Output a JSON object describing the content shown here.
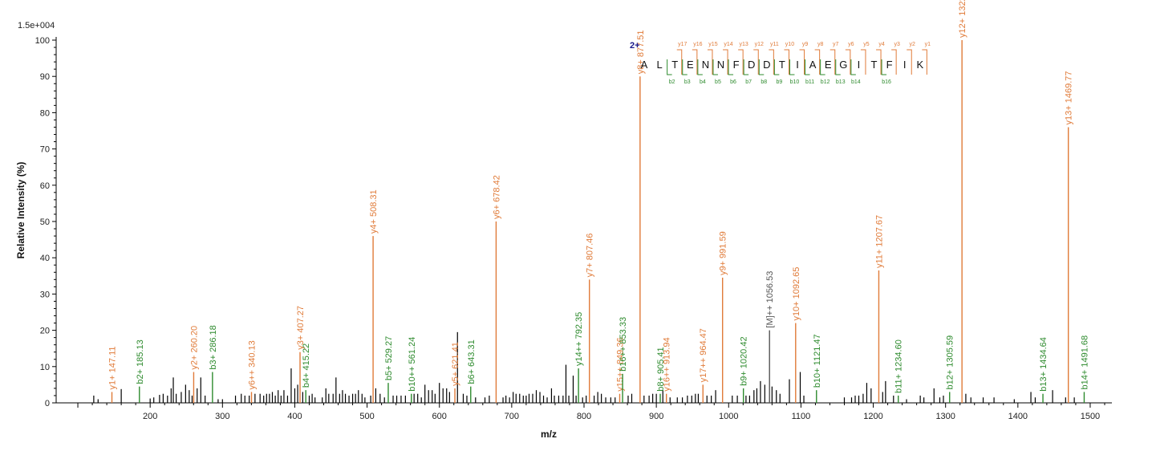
{
  "chart_data": {
    "type": "bar",
    "title": "",
    "scale_label": "1.5e+004",
    "xlabel": "m/z",
    "ylabel": "Relative   Intensity (%)",
    "xlim": [
      70,
      1530
    ],
    "ylim": [
      0,
      100
    ],
    "x_ticks": [
      200,
      300,
      400,
      500,
      600,
      700,
      800,
      900,
      1000,
      1100,
      1200,
      1300,
      1400,
      1500
    ],
    "y_ticks": [
      0,
      10,
      20,
      30,
      40,
      50,
      60,
      70,
      80,
      90,
      100
    ],
    "colors": {
      "y_ion": "#e07b39",
      "b_ion": "#2e8b2e",
      "precursor": "#555555",
      "unlabeled": "#000000",
      "charge": "#1a1a8c"
    },
    "labeled_peaks": [
      {
        "mz": 147.11,
        "intensity": 3,
        "label": "y1+ 147.11",
        "kind": "y_ion"
      },
      {
        "mz": 185.13,
        "intensity": 4.5,
        "label": "b2+ 185.13",
        "kind": "b_ion"
      },
      {
        "mz": 260.2,
        "intensity": 8.5,
        "label": "y2+ 260.20",
        "kind": "y_ion"
      },
      {
        "mz": 286.18,
        "intensity": 8.5,
        "label": "b3+ 286.18",
        "kind": "b_ion"
      },
      {
        "mz": 340.13,
        "intensity": 3,
        "label": "y6++ 340.13",
        "kind": "y_ion"
      },
      {
        "mz": 407.27,
        "intensity": 14,
        "label": "y3+ 407.27",
        "kind": "y_ion"
      },
      {
        "mz": 415.22,
        "intensity": 3.5,
        "label": "b4+ 415.22",
        "kind": "b_ion"
      },
      {
        "mz": 508.31,
        "intensity": 46,
        "label": "y4+ 508.31",
        "kind": "y_ion"
      },
      {
        "mz": 529.27,
        "intensity": 5.5,
        "label": "b5+ 529.27",
        "kind": "b_ion"
      },
      {
        "mz": 561.24,
        "intensity": 2.5,
        "label": "b10++ 561.24",
        "kind": "b_ion"
      },
      {
        "mz": 621.41,
        "intensity": 4,
        "label": "y5+ 621.41",
        "kind": "y_ion"
      },
      {
        "mz": 643.31,
        "intensity": 4.5,
        "label": "b6+ 643.31",
        "kind": "b_ion"
      },
      {
        "mz": 678.42,
        "intensity": 50,
        "label": "y6+ 678.42",
        "kind": "y_ion"
      },
      {
        "mz": 792.35,
        "intensity": 9.5,
        "label": "y14++ 792.35",
        "kind": "b_ion"
      },
      {
        "mz": 807.46,
        "intensity": 34,
        "label": "y7+ 807.46",
        "kind": "y_ion"
      },
      {
        "mz": 849.36,
        "intensity": 2.5,
        "label": "y15++ 849.36",
        "kind": "y_ion"
      },
      {
        "mz": 853.33,
        "intensity": 8,
        "label": "b16++ 853.33",
        "kind": "b_ion"
      },
      {
        "mz": 877.51,
        "intensity": 90,
        "label": "y8+ 877.51",
        "kind": "y_ion"
      },
      {
        "mz": 905.41,
        "intensity": 2.5,
        "label": "b8+ 905.41",
        "kind": "b_ion"
      },
      {
        "mz": 913.94,
        "intensity": 2.5,
        "label": "y16++ 913.94",
        "kind": "y_ion"
      },
      {
        "mz": 964.47,
        "intensity": 5,
        "label": "y17++ 964.47",
        "kind": "y_ion"
      },
      {
        "mz": 991.59,
        "intensity": 34.5,
        "label": "y9+ 991.59",
        "kind": "y_ion"
      },
      {
        "mz": 1020.42,
        "intensity": 4,
        "label": "b9+ 1020.42",
        "kind": "b_ion"
      },
      {
        "mz": 1056.53,
        "intensity": 20,
        "label": "[M]++ 1056.53",
        "kind": "precursor"
      },
      {
        "mz": 1092.65,
        "intensity": 22,
        "label": "y10+ 1092.65",
        "kind": "y_ion"
      },
      {
        "mz": 1121.47,
        "intensity": 3.5,
        "label": "b10+ 1121.47",
        "kind": "b_ion"
      },
      {
        "mz": 1207.67,
        "intensity": 36.5,
        "label": "y11+ 1207.67",
        "kind": "y_ion"
      },
      {
        "mz": 1234.6,
        "intensity": 2,
        "label": "b11+ 1234.60",
        "kind": "b_ion"
      },
      {
        "mz": 1305.59,
        "intensity": 3,
        "label": "b12+ 1305.59",
        "kind": "b_ion"
      },
      {
        "mz": 1322.7,
        "intensity": 100,
        "label": "y12+ 1322.70",
        "kind": "y_ion"
      },
      {
        "mz": 1434.64,
        "intensity": 2.5,
        "label": "b13+ 1434.64",
        "kind": "b_ion"
      },
      {
        "mz": 1469.77,
        "intensity": 76,
        "label": "y13+ 1469.77",
        "kind": "y_ion"
      },
      {
        "mz": 1491.68,
        "intensity": 3,
        "label": "b14+ 1491.68",
        "kind": "b_ion"
      }
    ],
    "unlabeled_peaks": [
      [
        122,
        2
      ],
      [
        128,
        1
      ],
      [
        160,
        3.8
      ],
      [
        200,
        1.2
      ],
      [
        205,
        1.5
      ],
      [
        213,
        2.2
      ],
      [
        218,
        2.5
      ],
      [
        224,
        2
      ],
      [
        229,
        4
      ],
      [
        232,
        7
      ],
      [
        236,
        2.5
      ],
      [
        243,
        3
      ],
      [
        249,
        5
      ],
      [
        254,
        3.5
      ],
      [
        258,
        2
      ],
      [
        265,
        4
      ],
      [
        270,
        7
      ],
      [
        276,
        2
      ],
      [
        294,
        1
      ],
      [
        300,
        1
      ],
      [
        318,
        2
      ],
      [
        326,
        2.5
      ],
      [
        331,
        2
      ],
      [
        337,
        2
      ],
      [
        345,
        2.5
      ],
      [
        352,
        2.5
      ],
      [
        357,
        2
      ],
      [
        361,
        2.5
      ],
      [
        365,
        2.5
      ],
      [
        369,
        3
      ],
      [
        373,
        2
      ],
      [
        377,
        3.5
      ],
      [
        381,
        2
      ],
      [
        385,
        3.5
      ],
      [
        390,
        2
      ],
      [
        395,
        9.5
      ],
      [
        400,
        4
      ],
      [
        404,
        5
      ],
      [
        411,
        3
      ],
      [
        420,
        2
      ],
      [
        424,
        2.5
      ],
      [
        428,
        1.5
      ],
      [
        438,
        1.5
      ],
      [
        443,
        4
      ],
      [
        447,
        2.5
      ],
      [
        453,
        2.5
      ],
      [
        457,
        7
      ],
      [
        462,
        2.5
      ],
      [
        466,
        3.5
      ],
      [
        470,
        2.5
      ],
      [
        475,
        2
      ],
      [
        480,
        2.5
      ],
      [
        484,
        2.5
      ],
      [
        488,
        3.5
      ],
      [
        493,
        2.5
      ],
      [
        497,
        1.5
      ],
      [
        505,
        2
      ],
      [
        512,
        4
      ],
      [
        518,
        2.5
      ],
      [
        524,
        1.5
      ],
      [
        536,
        2
      ],
      [
        541,
        2
      ],
      [
        547,
        2
      ],
      [
        553,
        2
      ],
      [
        565,
        2.5
      ],
      [
        570,
        2.5
      ],
      [
        575,
        1.5
      ],
      [
        580,
        5
      ],
      [
        585,
        3.5
      ],
      [
        590,
        3.5
      ],
      [
        594,
        2.5
      ],
      [
        600,
        5.5
      ],
      [
        605,
        4
      ],
      [
        610,
        4
      ],
      [
        614,
        3
      ],
      [
        625,
        19.5
      ],
      [
        633,
        2.5
      ],
      [
        638,
        2
      ],
      [
        650,
        1.5
      ],
      [
        663,
        1.5
      ],
      [
        669,
        2
      ],
      [
        688,
        1.5
      ],
      [
        692,
        2
      ],
      [
        697,
        1.5
      ],
      [
        702,
        3
      ],
      [
        706,
        2.5
      ],
      [
        711,
        2.5
      ],
      [
        716,
        2
      ],
      [
        720,
        2
      ],
      [
        724,
        2.5
      ],
      [
        729,
        2.5
      ],
      [
        734,
        3.5
      ],
      [
        739,
        3
      ],
      [
        744,
        2
      ],
      [
        749,
        1.5
      ],
      [
        755,
        4
      ],
      [
        759,
        2
      ],
      [
        765,
        2
      ],
      [
        771,
        2
      ],
      [
        775,
        10.5
      ],
      [
        779,
        2
      ],
      [
        785,
        7.5
      ],
      [
        789,
        2
      ],
      [
        798,
        1.5
      ],
      [
        803,
        2
      ],
      [
        814,
        2
      ],
      [
        819,
        3
      ],
      [
        824,
        2.5
      ],
      [
        830,
        1.5
      ],
      [
        837,
        1.5
      ],
      [
        843,
        1.5
      ],
      [
        861,
        2
      ],
      [
        866,
        2.5
      ],
      [
        883,
        2
      ],
      [
        890,
        2
      ],
      [
        895,
        2.5
      ],
      [
        900,
        2.5
      ],
      [
        909,
        3.5
      ],
      [
        919,
        1.5
      ],
      [
        929,
        1.5
      ],
      [
        936,
        1.5
      ],
      [
        943,
        2
      ],
      [
        949,
        2
      ],
      [
        954,
        2.5
      ],
      [
        958,
        2.5
      ],
      [
        970,
        2
      ],
      [
        976,
        2
      ],
      [
        982,
        3.5
      ],
      [
        1005,
        2
      ],
      [
        1012,
        2
      ],
      [
        1024,
        2
      ],
      [
        1029,
        2
      ],
      [
        1035,
        3.5
      ],
      [
        1039,
        4
      ],
      [
        1044,
        6
      ],
      [
        1050,
        5
      ],
      [
        1060,
        4.5
      ],
      [
        1066,
        3.5
      ],
      [
        1071,
        2.5
      ],
      [
        1084,
        6.5
      ],
      [
        1099,
        8.5
      ],
      [
        1104,
        2
      ],
      [
        1160,
        1.5
      ],
      [
        1170,
        1.5
      ],
      [
        1175,
        2
      ],
      [
        1180,
        2
      ],
      [
        1186,
        2.5
      ],
      [
        1191,
        5.5
      ],
      [
        1197,
        4
      ],
      [
        1213,
        3
      ],
      [
        1217,
        6
      ],
      [
        1228,
        2
      ],
      [
        1246,
        1
      ],
      [
        1265,
        2
      ],
      [
        1270,
        1.5
      ],
      [
        1284,
        4
      ],
      [
        1292,
        1.5
      ],
      [
        1297,
        2
      ],
      [
        1328,
        2.5
      ],
      [
        1335,
        1.5
      ],
      [
        1352,
        1.5
      ],
      [
        1367,
        1.5
      ],
      [
        1395,
        1
      ],
      [
        1418,
        3
      ],
      [
        1424,
        1.5
      ],
      [
        1448,
        3.5
      ],
      [
        1466,
        1.5
      ],
      [
        1478,
        1.5
      ]
    ],
    "sequence": {
      "charge": "2+",
      "residues": [
        "A",
        "L",
        "T",
        "E",
        "N",
        "N",
        "F",
        "D",
        "D",
        "T",
        "I",
        "A",
        "E",
        "G",
        "I",
        "T",
        "F",
        "I",
        "K"
      ],
      "y_labels": [
        "y17",
        "y16",
        "y15",
        "y14",
        "y13",
        "y12",
        "y11",
        "y10",
        "y9",
        "y8",
        "y7",
        "y6",
        "y5",
        "y4",
        "y3",
        "y2",
        "y1"
      ],
      "b_labels": [
        "b2",
        "b3",
        "b4",
        "b5",
        "b6",
        "b7",
        "b8",
        "b9",
        "b10",
        "b11",
        "b12",
        "b13",
        "b14",
        "b16"
      ],
      "b_positions": [
        2,
        3,
        4,
        5,
        6,
        7,
        8,
        9,
        10,
        11,
        12,
        13,
        14,
        16
      ]
    }
  }
}
